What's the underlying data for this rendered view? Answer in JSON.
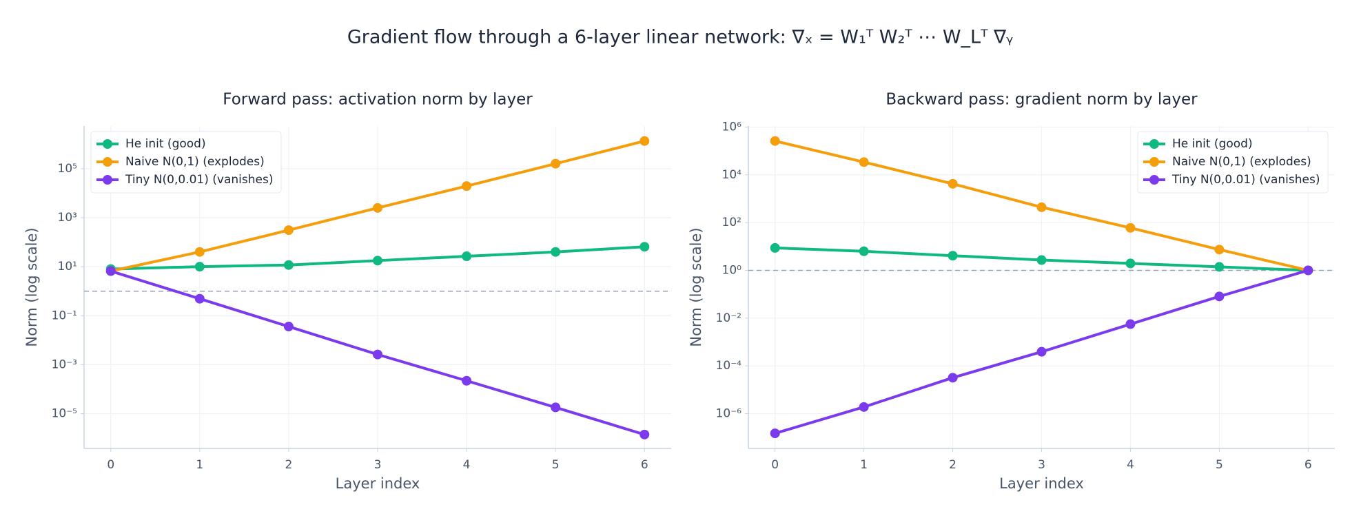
{
  "title": "Gradient flow through a 6-layer linear network: ∇ₓ = W₁ᵀ W₂ᵀ ⋯ W_Lᵀ ∇ᵧ",
  "chart_data": [
    {
      "type": "line",
      "title": "Forward pass: activation norm by layer",
      "x_label": "Layer index",
      "y_label": "Norm (log scale)",
      "x": [
        0,
        1,
        2,
        3,
        4,
        5,
        6
      ],
      "xlim": [
        -0.3,
        6.3
      ],
      "xticks": [
        0,
        1,
        2,
        3,
        4,
        5,
        6
      ],
      "ylim": [
        3.8e-07,
        5500000.0
      ],
      "log_scale": true,
      "grid": true,
      "legend": "upper left",
      "yticks": [
        {
          "value": 1e-05,
          "label": "10⁻⁵"
        },
        {
          "value": 0.001,
          "label": "10⁻³"
        },
        {
          "value": 0.1,
          "label": "10⁻¹"
        },
        {
          "value": 10,
          "label": "10¹"
        },
        {
          "value": 1000,
          "label": "10³"
        },
        {
          "value": 100000,
          "label": "10⁵"
        }
      ],
      "hline": 1,
      "series": [
        {
          "name": "He init (good)",
          "color": "#10b981",
          "values": [
            8,
            10,
            11.7,
            17.7,
            26.6,
            40,
            65
          ]
        },
        {
          "name": "Naive N(0,1) (explodes)",
          "color": "#f59e0b",
          "values": [
            6.6,
            40,
            310,
            2500,
            19500,
            160000,
            1350000
          ]
        },
        {
          "name": "Tiny N(0,0.01) (vanishes)",
          "color": "#7c3aed",
          "values": [
            6.6,
            0.49,
            0.036,
            0.0026,
            0.00022,
            1.8e-05,
            1.4e-06
          ]
        }
      ]
    },
    {
      "type": "line",
      "title": "Backward pass: gradient norm by layer",
      "x_label": "Layer index",
      "y_label": "Norm (log scale)",
      "x": [
        0,
        1,
        2,
        3,
        4,
        5,
        6
      ],
      "xlim": [
        -0.3,
        6.3
      ],
      "xticks": [
        0,
        1,
        2,
        3,
        4,
        5,
        6
      ],
      "ylim": [
        3.5e-08,
        1100000.0
      ],
      "log_scale": true,
      "grid": true,
      "legend": "upper right",
      "yticks": [
        {
          "value": 1e-06,
          "label": "10⁻⁶"
        },
        {
          "value": 0.0001,
          "label": "10⁻⁴"
        },
        {
          "value": 0.01,
          "label": "10⁻²"
        },
        {
          "value": 1,
          "label": "10⁰"
        },
        {
          "value": 100,
          "label": "10²"
        },
        {
          "value": 10000,
          "label": "10⁴"
        },
        {
          "value": 1000000,
          "label": "10⁶"
        }
      ],
      "hline": 1,
      "series": [
        {
          "name": "He init (good)",
          "color": "#10b981",
          "values": [
            8.7,
            6.3,
            4.1,
            2.7,
            1.95,
            1.4,
            1
          ]
        },
        {
          "name": "Naive N(0,1) (explodes)",
          "color": "#f59e0b",
          "values": [
            260000,
            34000,
            4200,
            440,
            60,
            7.4,
            1
          ]
        },
        {
          "name": "Tiny N(0,0.01) (vanishes)",
          "color": "#7c3aed",
          "values": [
            1.5e-07,
            1.9e-06,
            3.2e-05,
            0.00039,
            0.0056,
            0.081,
            1
          ]
        }
      ]
    }
  ]
}
